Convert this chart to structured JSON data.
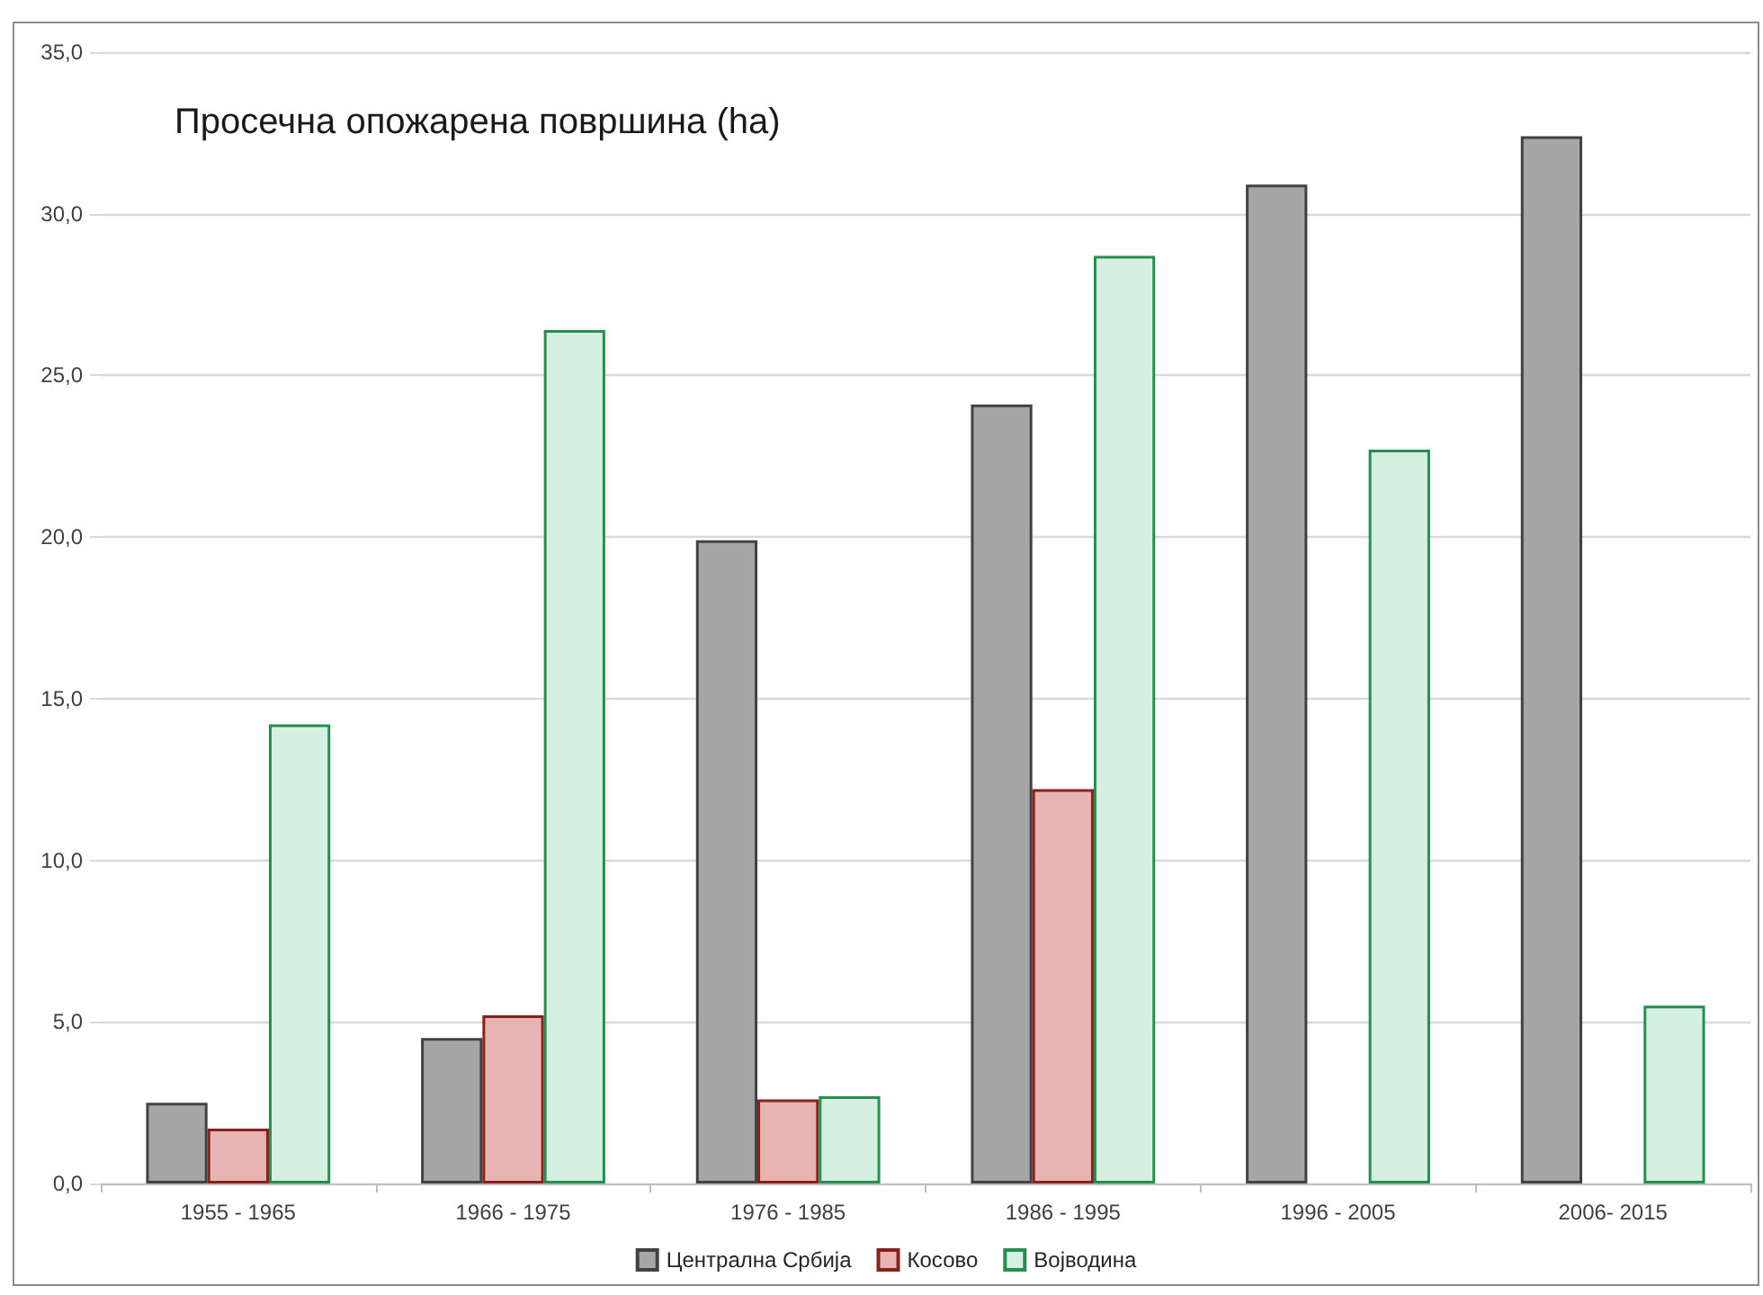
{
  "chart_data": {
    "type": "bar",
    "title": "Просечна опожарена површина (ha)",
    "categories": [
      "1955 - 1965",
      "1966 - 1975",
      "1976 - 1985",
      "1986 - 1995",
      "1996 - 2005",
      "2006- 2015"
    ],
    "series": [
      {
        "name": "Централна Србија",
        "color": "#a6a6a6",
        "values": [
          2.5,
          4.5,
          19.9,
          24.1,
          30.9,
          32.4
        ]
      },
      {
        "name": "Косово",
        "color": "#e8b4b2",
        "values": [
          1.7,
          5.2,
          2.6,
          12.2,
          null,
          null
        ]
      },
      {
        "name": "Војводина",
        "color": "#d5f0e0",
        "values": [
          14.2,
          26.4,
          2.7,
          28.7,
          22.7,
          5.5
        ]
      }
    ],
    "ylim": [
      0,
      35
    ],
    "yticks": [
      {
        "value": 0,
        "label": "0,0"
      },
      {
        "value": 5,
        "label": "5,0"
      },
      {
        "value": 10,
        "label": "10,0"
      },
      {
        "value": 15,
        "label": "15,0"
      },
      {
        "value": 20,
        "label": "20,0"
      },
      {
        "value": 25,
        "label": "25,0"
      },
      {
        "value": 30,
        "label": "30,0"
      },
      {
        "value": 35,
        "label": "35,0"
      }
    ],
    "grid": "y",
    "legend": "bottom"
  }
}
